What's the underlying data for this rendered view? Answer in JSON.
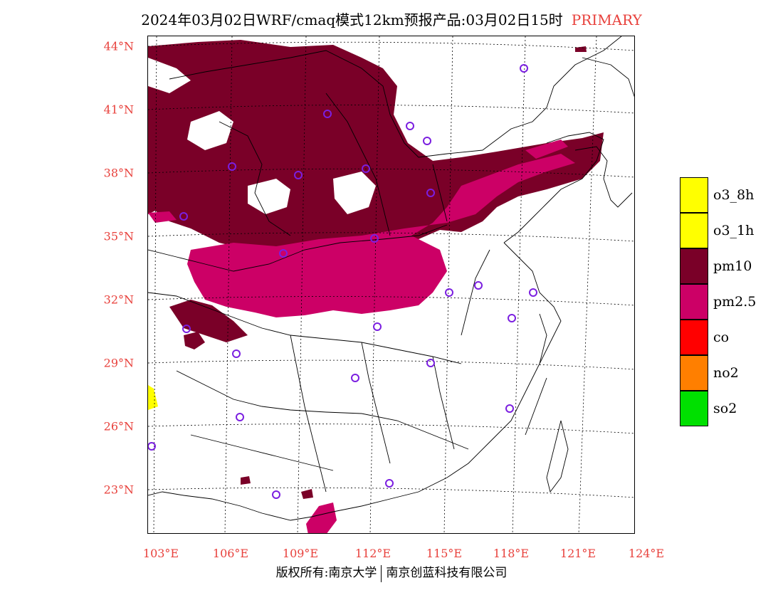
{
  "title": {
    "text": "2024年03月02日WRF/cmaq模式12km预报产品:03月02日15时",
    "tag": "PRIMARY"
  },
  "axes": {
    "lat_labels": [
      "44°N",
      "41°N",
      "38°N",
      "35°N",
      "32°N",
      "29°N",
      "26°N",
      "23°N"
    ],
    "lon_labels": [
      "103°E",
      "106°E",
      "109°E",
      "112°E",
      "115°E",
      "118°E",
      "121°E",
      "124°E"
    ]
  },
  "legend": [
    {
      "label": "o3_8h",
      "color": "#ffff00"
    },
    {
      "label": "o3_1h",
      "color": "#ffff00"
    },
    {
      "label": "pm10",
      "color": "#7a0028"
    },
    {
      "label": "pm2.5",
      "color": "#cc0066"
    },
    {
      "label": "co",
      "color": "#ff0000"
    },
    {
      "label": "no2",
      "color": "#ff7f00"
    },
    {
      "label": "so2",
      "color": "#00e000"
    }
  ],
  "colors": {
    "pm10": "#7a0028",
    "pm25": "#cc0066",
    "station": "#7b1fe0",
    "label": "#e8413c"
  },
  "footer": {
    "left": "版权所有:南京大学",
    "right": "南京创蓝科技有限公司"
  }
}
